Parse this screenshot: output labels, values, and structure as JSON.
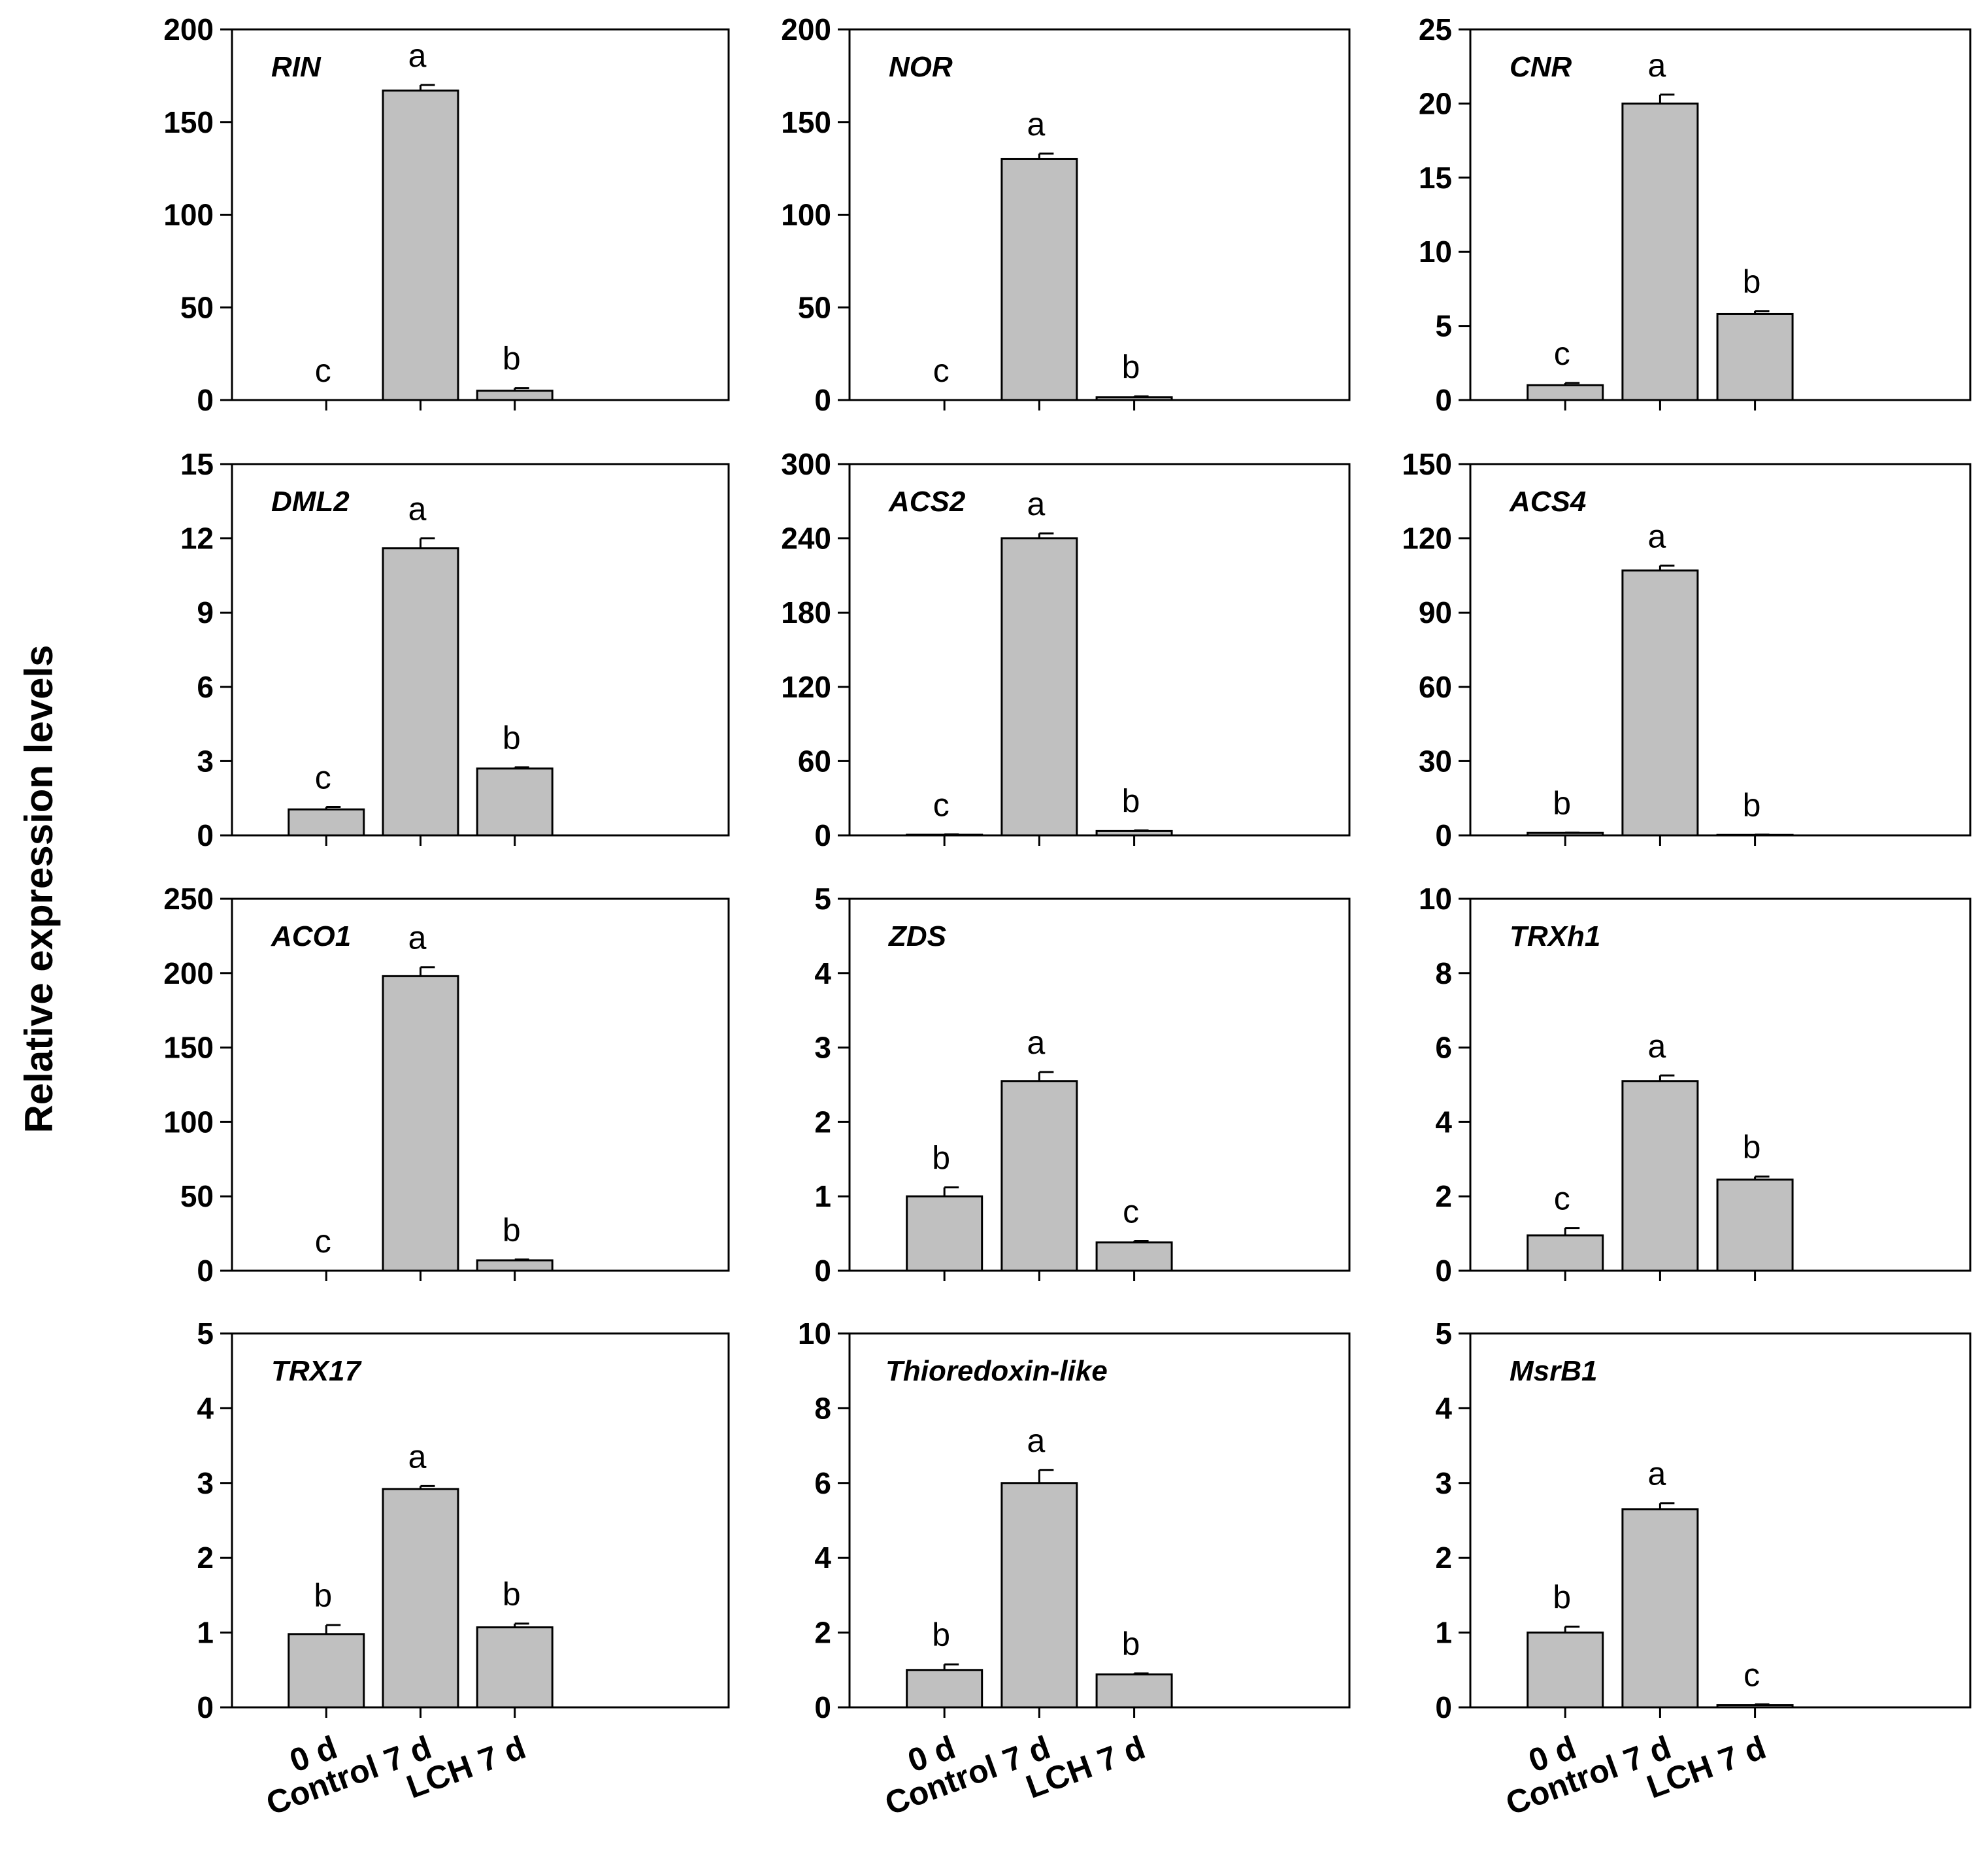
{
  "chart_data": {
    "type": "bar",
    "ylabel": "Relative expression levels",
    "categories": [
      "0 d",
      "Control 7 d",
      "LCH 7 d"
    ],
    "bar_color": "#c0c0c0",
    "panels": [
      {
        "gene": "RIN",
        "ylim": [
          0,
          200
        ],
        "yticks": [
          0,
          50,
          100,
          150,
          200
        ],
        "values": [
          0,
          167,
          5
        ],
        "errors": [
          0,
          3,
          1.5
        ],
        "letters": [
          "c",
          "a",
          "b"
        ]
      },
      {
        "gene": "NOR",
        "ylim": [
          0,
          200
        ],
        "yticks": [
          0,
          50,
          100,
          150,
          200
        ],
        "values": [
          0,
          130,
          1.5
        ],
        "errors": [
          0,
          3,
          0.5
        ],
        "letters": [
          "c",
          "a",
          "b"
        ]
      },
      {
        "gene": "CNR",
        "ylim": [
          0,
          25
        ],
        "yticks": [
          0,
          5,
          10,
          15,
          20,
          25
        ],
        "values": [
          1,
          20,
          5.8
        ],
        "errors": [
          0.15,
          0.6,
          0.2
        ],
        "letters": [
          "c",
          "a",
          "b"
        ]
      },
      {
        "gene": "DML2",
        "ylim": [
          0,
          15
        ],
        "yticks": [
          0,
          3,
          6,
          9,
          12,
          15
        ],
        "values": [
          1.05,
          11.6,
          2.7
        ],
        "errors": [
          0.1,
          0.4,
          0.05
        ],
        "letters": [
          "c",
          "a",
          "b"
        ]
      },
      {
        "gene": "ACS2",
        "ylim": [
          0,
          300
        ],
        "yticks": [
          0,
          60,
          120,
          180,
          240,
          300
        ],
        "values": [
          0.5,
          240,
          3.5
        ],
        "errors": [
          0.3,
          4,
          0.5
        ],
        "letters": [
          "c",
          "a",
          "b"
        ]
      },
      {
        "gene": "ACS4",
        "ylim": [
          0,
          150
        ],
        "yticks": [
          0,
          30,
          60,
          90,
          120,
          150
        ],
        "values": [
          1,
          107,
          0.2
        ],
        "errors": [
          0.1,
          2,
          0.1
        ],
        "letters": [
          "b",
          "a",
          "b"
        ]
      },
      {
        "gene": "ACO1",
        "ylim": [
          0,
          250
        ],
        "yticks": [
          0,
          50,
          100,
          150,
          200,
          250
        ],
        "values": [
          0,
          198,
          7
        ],
        "errors": [
          0,
          6,
          0.5
        ],
        "letters": [
          "c",
          "a",
          "b"
        ]
      },
      {
        "gene": "ZDS",
        "ylim": [
          0,
          5
        ],
        "yticks": [
          0,
          1,
          2,
          3,
          4,
          5
        ],
        "values": [
          1,
          2.55,
          0.38
        ],
        "errors": [
          0.12,
          0.12,
          0.02
        ],
        "letters": [
          "b",
          "a",
          "c"
        ]
      },
      {
        "gene": "TRXh1",
        "ylim": [
          0,
          10
        ],
        "yticks": [
          0,
          2,
          4,
          6,
          8,
          10
        ],
        "values": [
          0.95,
          5.1,
          2.45
        ],
        "errors": [
          0.2,
          0.15,
          0.08
        ],
        "letters": [
          "c",
          "a",
          "b"
        ]
      },
      {
        "gene": "TRX17",
        "ylim": [
          0,
          5
        ],
        "yticks": [
          0,
          1,
          2,
          3,
          4,
          5
        ],
        "values": [
          0.98,
          2.92,
          1.07
        ],
        "errors": [
          0.12,
          0.04,
          0.05
        ],
        "letters": [
          "b",
          "a",
          "b"
        ]
      },
      {
        "gene": "Thioredoxin-like",
        "ylim": [
          0,
          10
        ],
        "yticks": [
          0,
          2,
          4,
          6,
          8,
          10
        ],
        "values": [
          1,
          6,
          0.88
        ],
        "errors": [
          0.15,
          0.35,
          0.03
        ],
        "letters": [
          "b",
          "a",
          "b"
        ]
      },
      {
        "gene": "MsrB1",
        "ylim": [
          0,
          5
        ],
        "yticks": [
          0,
          1,
          2,
          3,
          4,
          5
        ],
        "values": [
          1,
          2.65,
          0.03
        ],
        "errors": [
          0.08,
          0.08,
          0.01
        ],
        "letters": [
          "b",
          "a",
          "c"
        ]
      }
    ]
  }
}
